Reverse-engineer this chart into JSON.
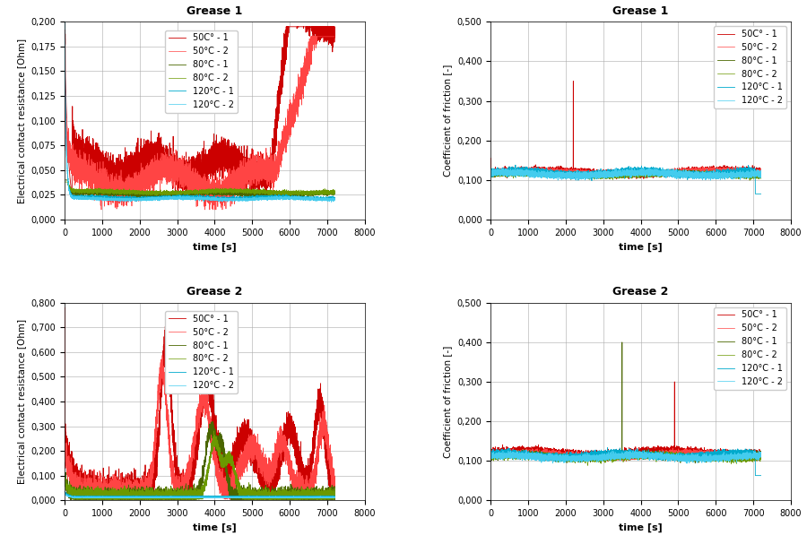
{
  "title_g1_ecr": "Grease 1",
  "title_g1_cof": "Grease 1",
  "title_g2_ecr": "Grease 2",
  "title_g2_cof": "Grease 2",
  "xlabel": "time [s]",
  "ylabel_ecr": "Electrical contact resistance [Ohm]",
  "ylabel_cof": "Coefficient of friction [-]",
  "xlim": [
    0,
    8000
  ],
  "g1_ecr_ylim": [
    0,
    0.2
  ],
  "g1_cof_ylim": [
    0,
    0.5
  ],
  "g2_ecr_ylim": [
    0,
    0.8
  ],
  "g2_cof_ylim": [
    0,
    0.5
  ],
  "colors_50": [
    "#cc0000",
    "#ff4444"
  ],
  "colors_80": [
    "#4a6600",
    "#6b9900"
  ],
  "colors_120": [
    "#00aacc",
    "#44ccee"
  ],
  "legend_labels": [
    "50C° - 1",
    "50°C - 2",
    "80°C - 1",
    "80°C - 2",
    "120°C - 1",
    "120°C - 2"
  ],
  "background_color": "#ffffff",
  "grid_color": "#aaaaaa",
  "tick_decimals": 3
}
